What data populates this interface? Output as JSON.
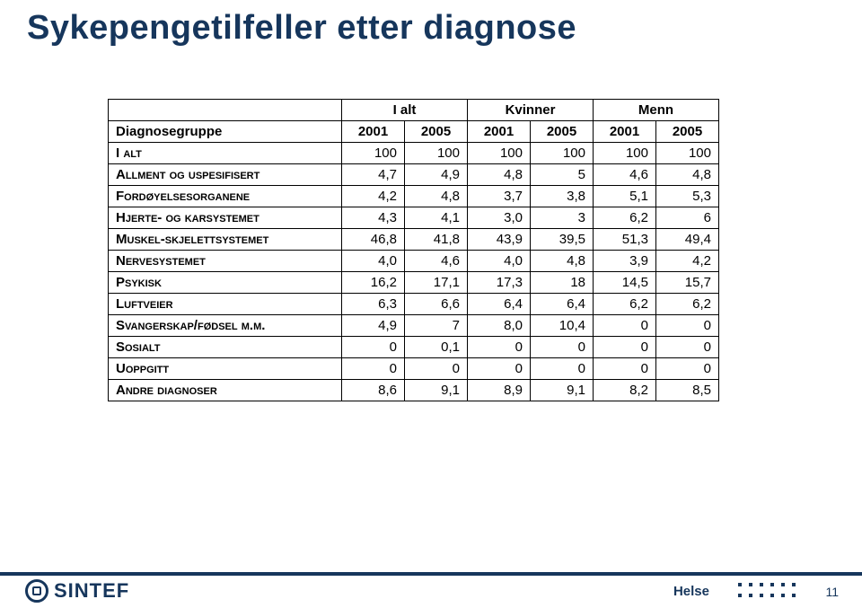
{
  "title": {
    "text": "Sykepengetilfeller etter diagnose",
    "color": "#16365c",
    "fontsize": 38
  },
  "table": {
    "header_groups": [
      "",
      "I alt",
      "Kvinner",
      "Menn"
    ],
    "subheaders": [
      "Diagnosegruppe",
      "2001",
      "2005",
      "2001",
      "2005",
      "2001",
      "2005"
    ],
    "rows": [
      {
        "label": "I alt",
        "cells": [
          "100",
          "100",
          "100",
          "100",
          "100",
          "100"
        ]
      },
      {
        "label": "Allment og uspesifisert",
        "cells": [
          "4,7",
          "4,9",
          "4,8",
          "5",
          "4,6",
          "4,8"
        ]
      },
      {
        "label": "Fordøyelsesorganene",
        "cells": [
          "4,2",
          "4,8",
          "3,7",
          "3,8",
          "5,1",
          "5,3"
        ]
      },
      {
        "label": "Hjerte- og karsystemet",
        "cells": [
          "4,3",
          "4,1",
          "3,0",
          "3",
          "6,2",
          "6"
        ]
      },
      {
        "label": "Muskel-skjelettsystemet",
        "cells": [
          "46,8",
          "41,8",
          "43,9",
          "39,5",
          "51,3",
          "49,4"
        ]
      },
      {
        "label": "Nervesystemet",
        "cells": [
          "4,0",
          "4,6",
          "4,0",
          "4,8",
          "3,9",
          "4,2"
        ]
      },
      {
        "label": "Psykisk",
        "cells": [
          "16,2",
          "17,1",
          "17,3",
          "18",
          "14,5",
          "15,7"
        ]
      },
      {
        "label": "Luftveier",
        "cells": [
          "6,3",
          "6,6",
          "6,4",
          "6,4",
          "6,2",
          "6,2"
        ]
      },
      {
        "label": "Svangerskap/fødsel m.m.",
        "cells": [
          "4,9",
          "7",
          "8,0",
          "10,4",
          "0",
          "0"
        ]
      },
      {
        "label": "Sosialt",
        "cells": [
          "0",
          "0,1",
          "0",
          "0",
          "0",
          "0"
        ]
      },
      {
        "label": "Uoppgitt",
        "cells": [
          "0",
          "0",
          "0",
          "0",
          "0",
          "0"
        ]
      },
      {
        "label": "Andre diagnoser",
        "cells": [
          "8,6",
          "9,1",
          "8,9",
          "9,1",
          "8,2",
          "8,5"
        ]
      }
    ],
    "border_color": "#000000",
    "label_fontsize": 15,
    "num_fontsize": 15
  },
  "footer": {
    "bar_color": "#16365c",
    "logo_text": "SINTEF",
    "logo_color": "#16365c",
    "label": "Helse",
    "label_color": "#16365c",
    "dot_color": "#16365c",
    "page_number": "11",
    "page_number_color": "#16365c"
  }
}
